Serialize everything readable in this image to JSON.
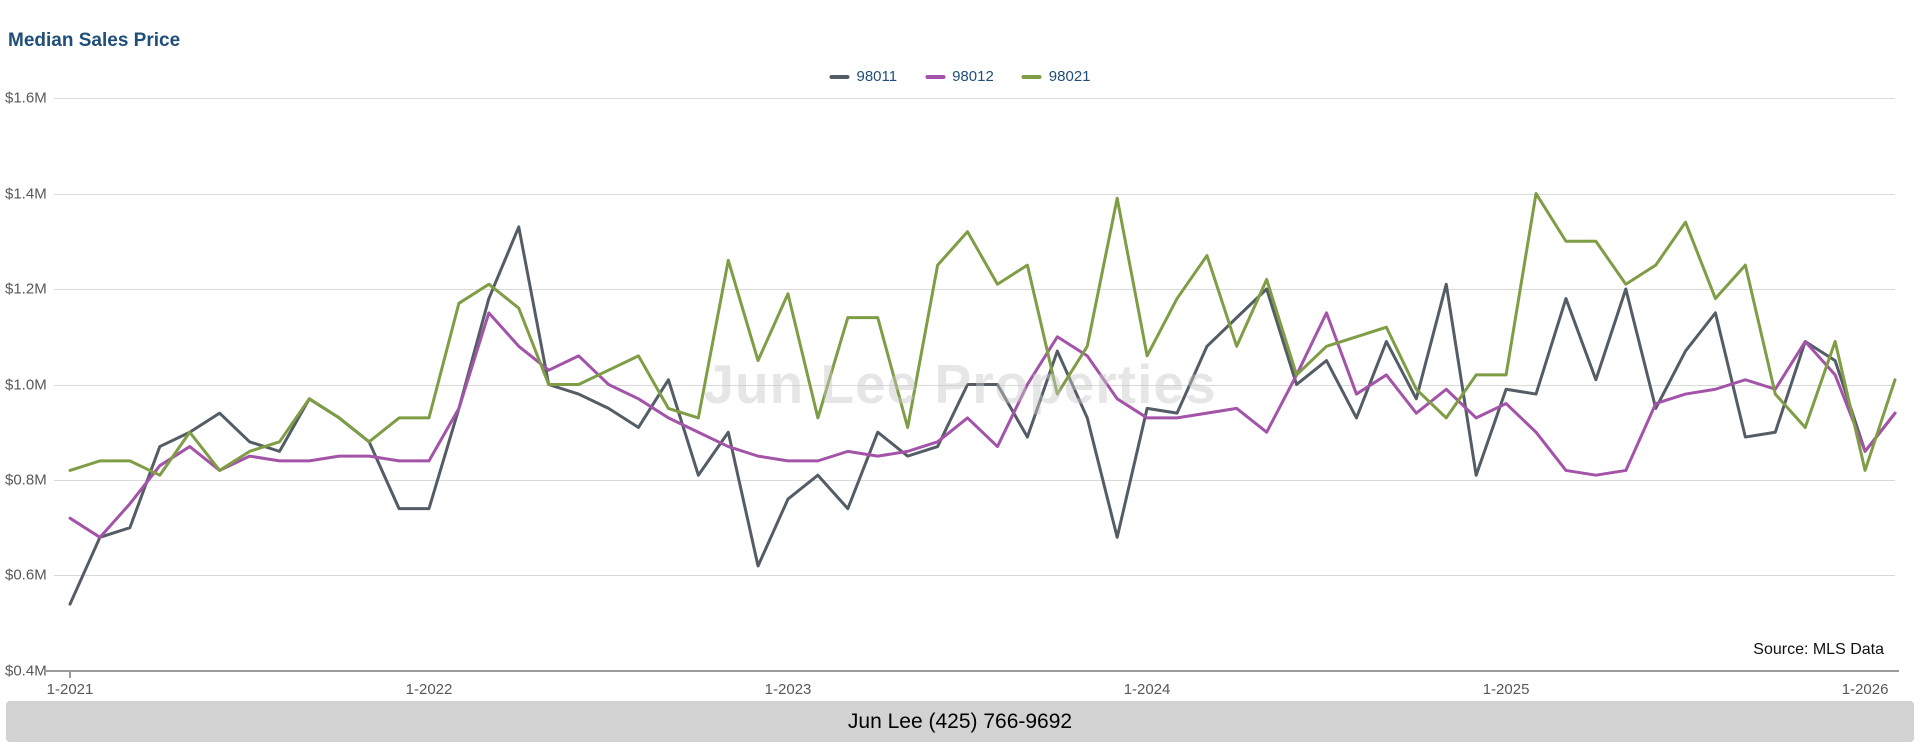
{
  "page": {
    "watermark": "Jun Lee Properties",
    "source_note": "Source: MLS Data",
    "footer_text": "Jun Lee (425) 766-9692"
  },
  "chart_data": {
    "type": "line",
    "title": "Median Sales Price",
    "unit": "million USD",
    "ylim": [
      0.4,
      1.6
    ],
    "grid": true,
    "legend_position": "top-center",
    "y_tick_labels": [
      "$1.6M",
      "$1.4M",
      "$1.2M",
      "$1.0M",
      "$0.8M",
      "$0.6M",
      "$0.4M"
    ],
    "x_tick_labels": [
      "1-2021",
      "1-2022",
      "1-2023",
      "1-2024",
      "1-2025",
      "1-2026"
    ],
    "x_tick_indices": [
      0,
      12,
      24,
      36,
      48,
      60
    ],
    "x": [
      "1-2021",
      "2-2021",
      "3-2021",
      "4-2021",
      "5-2021",
      "6-2021",
      "7-2021",
      "8-2021",
      "9-2021",
      "10-2021",
      "11-2021",
      "12-2021",
      "1-2022",
      "2-2022",
      "3-2022",
      "4-2022",
      "5-2022",
      "6-2022",
      "7-2022",
      "8-2022",
      "9-2022",
      "10-2022",
      "11-2022",
      "12-2022",
      "1-2023",
      "2-2023",
      "3-2023",
      "4-2023",
      "5-2023",
      "6-2023",
      "7-2023",
      "8-2023",
      "9-2023",
      "10-2023",
      "11-2023",
      "12-2023",
      "1-2024",
      "2-2024",
      "3-2024",
      "4-2024",
      "5-2024",
      "6-2024",
      "7-2024",
      "8-2024",
      "9-2024",
      "10-2024",
      "11-2024",
      "12-2024",
      "1-2025",
      "2-2025",
      "3-2025",
      "4-2025",
      "5-2025",
      "6-2025",
      "7-2025",
      "8-2025",
      "9-2025",
      "10-2025",
      "11-2025",
      "12-2025",
      "1-2026",
      "2-2026"
    ],
    "series": [
      {
        "name": "98011",
        "color": "#545d66",
        "values": [
          0.54,
          0.68,
          0.7,
          0.87,
          0.9,
          0.94,
          0.88,
          0.86,
          0.97,
          0.93,
          0.88,
          0.74,
          0.74,
          0.95,
          1.18,
          1.33,
          1.0,
          0.98,
          0.95,
          0.91,
          1.01,
          0.81,
          0.9,
          0.62,
          0.76,
          0.81,
          0.74,
          0.9,
          0.85,
          0.87,
          1.0,
          1.0,
          0.89,
          1.07,
          0.93,
          0.68,
          0.95,
          0.94,
          1.08,
          1.14,
          1.2,
          1.0,
          1.05,
          0.93,
          1.09,
          0.97,
          1.21,
          0.81,
          0.99,
          0.98,
          1.18,
          1.01,
          1.2,
          0.95,
          1.07,
          1.15,
          0.89,
          0.9,
          1.09,
          1.05,
          0.86,
          0.94
        ]
      },
      {
        "name": "98012",
        "color": "#a353a8",
        "values": [
          0.72,
          0.68,
          0.75,
          0.83,
          0.87,
          0.82,
          0.85,
          0.84,
          0.84,
          0.85,
          0.85,
          0.84,
          0.84,
          0.95,
          1.15,
          1.08,
          1.03,
          1.06,
          1.0,
          0.97,
          0.93,
          0.9,
          0.87,
          0.85,
          0.84,
          0.84,
          0.86,
          0.85,
          0.86,
          0.88,
          0.93,
          0.87,
          1.0,
          1.1,
          1.06,
          0.97,
          0.93,
          0.93,
          0.94,
          0.95,
          0.9,
          1.02,
          1.15,
          0.98,
          1.02,
          0.94,
          0.99,
          0.93,
          0.96,
          0.9,
          0.82,
          0.81,
          0.82,
          0.96,
          0.98,
          0.99,
          1.01,
          0.99,
          1.09,
          1.02,
          0.86,
          0.94
        ]
      },
      {
        "name": "98021",
        "color": "#7f9d45",
        "values": [
          0.82,
          0.84,
          0.84,
          0.81,
          0.9,
          0.82,
          0.86,
          0.88,
          0.97,
          0.93,
          0.88,
          0.93,
          0.93,
          1.17,
          1.21,
          1.16,
          1.0,
          1.0,
          1.03,
          1.06,
          0.95,
          0.93,
          1.26,
          1.05,
          1.19,
          0.93,
          1.14,
          1.14,
          0.91,
          1.25,
          1.32,
          1.21,
          1.25,
          0.98,
          1.08,
          1.39,
          1.06,
          1.18,
          1.27,
          1.08,
          1.22,
          1.02,
          1.08,
          1.1,
          1.12,
          0.99,
          0.93,
          1.02,
          1.02,
          1.4,
          1.3,
          1.3,
          1.21,
          1.25,
          1.34,
          1.18,
          1.25,
          0.98,
          0.91,
          1.09,
          0.82,
          1.01
        ]
      }
    ]
  }
}
